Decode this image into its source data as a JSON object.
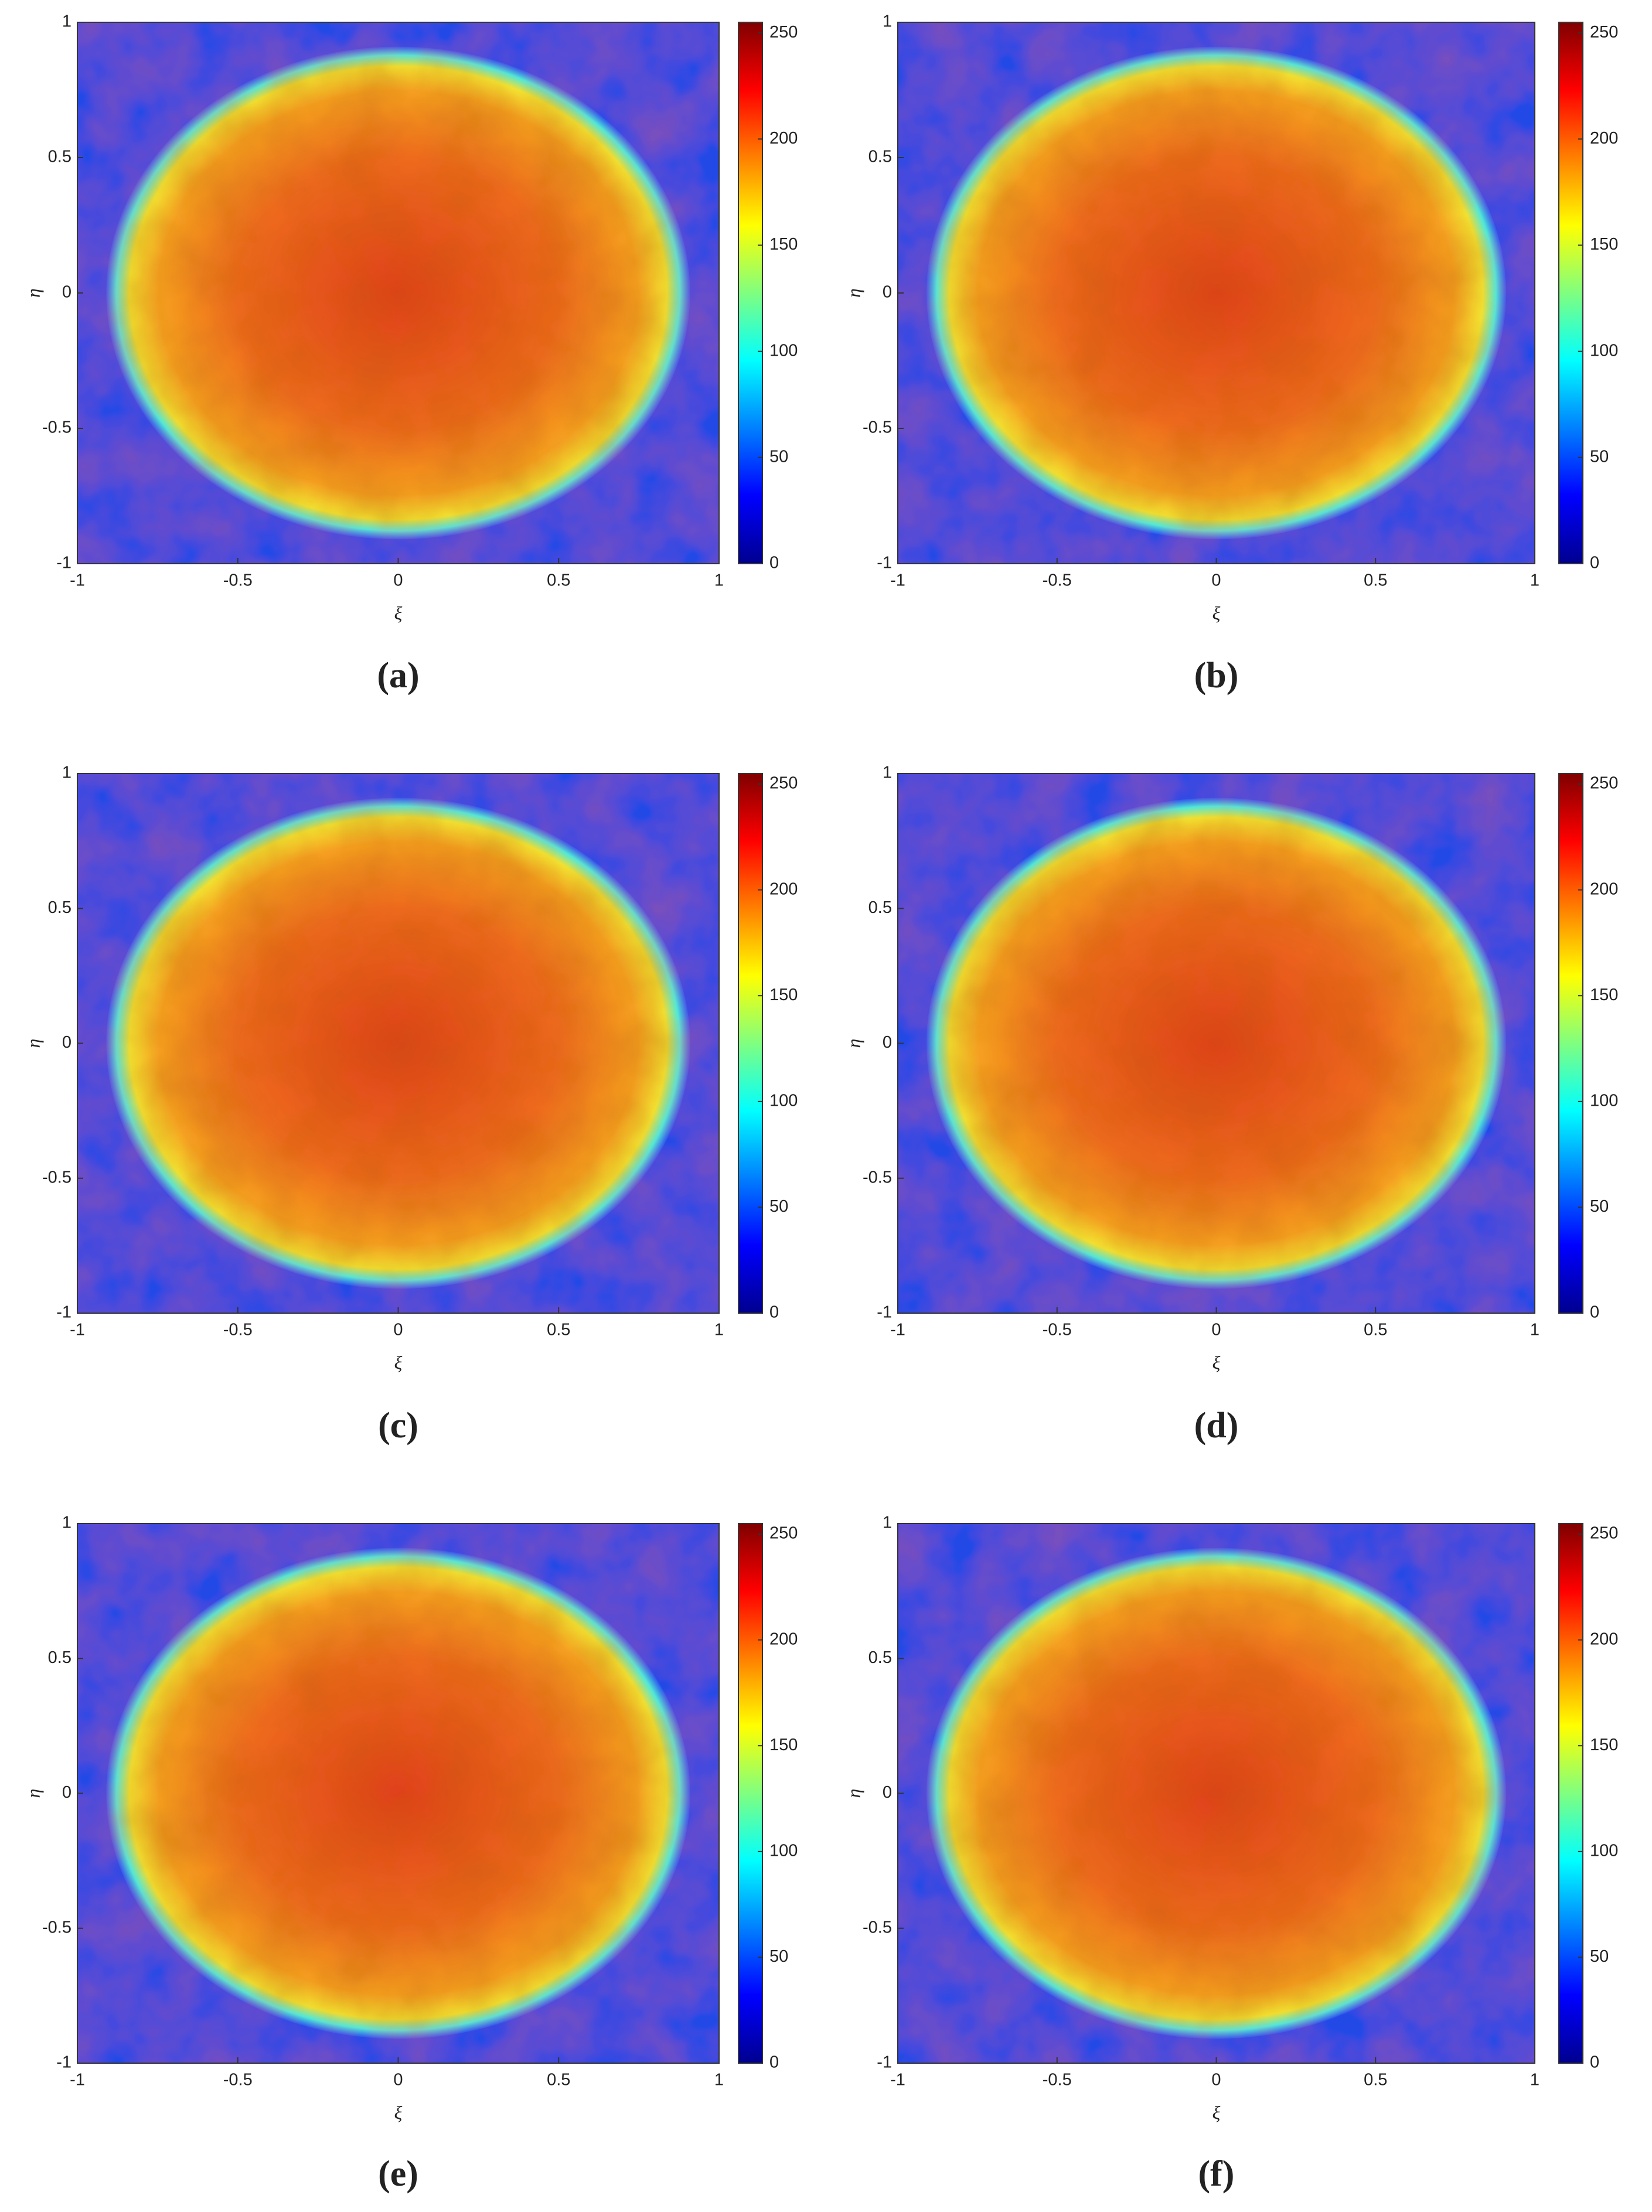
{
  "chart_data": [
    {
      "type": "heatmap",
      "label": "(a)",
      "xlabel": "ξ",
      "ylabel": "η",
      "xlim": [
        -1,
        1
      ],
      "ylim": [
        -1,
        1
      ],
      "xticks": [
        -1,
        -0.5,
        0,
        0.5,
        1
      ],
      "yticks": [
        -1,
        -0.5,
        0,
        0.5,
        1
      ],
      "clim": [
        0,
        255
      ],
      "cticks": [
        0,
        50,
        100,
        150,
        200,
        250
      ]
    },
    {
      "type": "heatmap",
      "label": "(b)",
      "xlabel": "ξ",
      "ylabel": "η",
      "xlim": [
        -1,
        1
      ],
      "ylim": [
        -1,
        1
      ],
      "xticks": [
        -1,
        -0.5,
        0,
        0.5,
        1
      ],
      "yticks": [
        -1,
        -0.5,
        0,
        0.5,
        1
      ],
      "clim": [
        0,
        255
      ],
      "cticks": [
        0,
        50,
        100,
        150,
        200,
        250
      ]
    },
    {
      "type": "heatmap",
      "label": "(c)",
      "xlabel": "ξ",
      "ylabel": "η",
      "xlim": [
        -1,
        1
      ],
      "ylim": [
        -1,
        1
      ],
      "xticks": [
        -1,
        -0.5,
        0,
        0.5,
        1
      ],
      "yticks": [
        -1,
        -0.5,
        0,
        0.5,
        1
      ],
      "clim": [
        0,
        255
      ],
      "cticks": [
        0,
        50,
        100,
        150,
        200,
        250
      ]
    },
    {
      "type": "heatmap",
      "label": "(d)",
      "xlabel": "ξ",
      "ylabel": "η",
      "xlim": [
        -1,
        1
      ],
      "ylim": [
        -1,
        1
      ],
      "xticks": [
        -1,
        -0.5,
        0,
        0.5,
        1
      ],
      "yticks": [
        -1,
        -0.5,
        0,
        0.5,
        1
      ],
      "clim": [
        0,
        255
      ],
      "cticks": [
        0,
        50,
        100,
        150,
        200,
        250
      ]
    },
    {
      "type": "heatmap",
      "label": "(e)",
      "xlabel": "ξ",
      "ylabel": "η",
      "xlim": [
        -1,
        1
      ],
      "ylim": [
        -1,
        1
      ],
      "xticks": [
        -1,
        -0.5,
        0,
        0.5,
        1
      ],
      "yticks": [
        -1,
        -0.5,
        0,
        0.5,
        1
      ],
      "clim": [
        0,
        255
      ],
      "cticks": [
        0,
        50,
        100,
        150,
        200,
        250
      ]
    },
    {
      "type": "heatmap",
      "label": "(f)",
      "xlabel": "ξ",
      "ylabel": "η",
      "xlim": [
        -1,
        1
      ],
      "ylim": [
        -1,
        1
      ],
      "xticks": [
        -1,
        -0.5,
        0,
        0.5,
        1
      ],
      "yticks": [
        -1,
        -0.5,
        0,
        0.5,
        1
      ],
      "clim": [
        0,
        255
      ],
      "cticks": [
        0,
        50,
        100,
        150,
        200,
        250
      ]
    }
  ]
}
